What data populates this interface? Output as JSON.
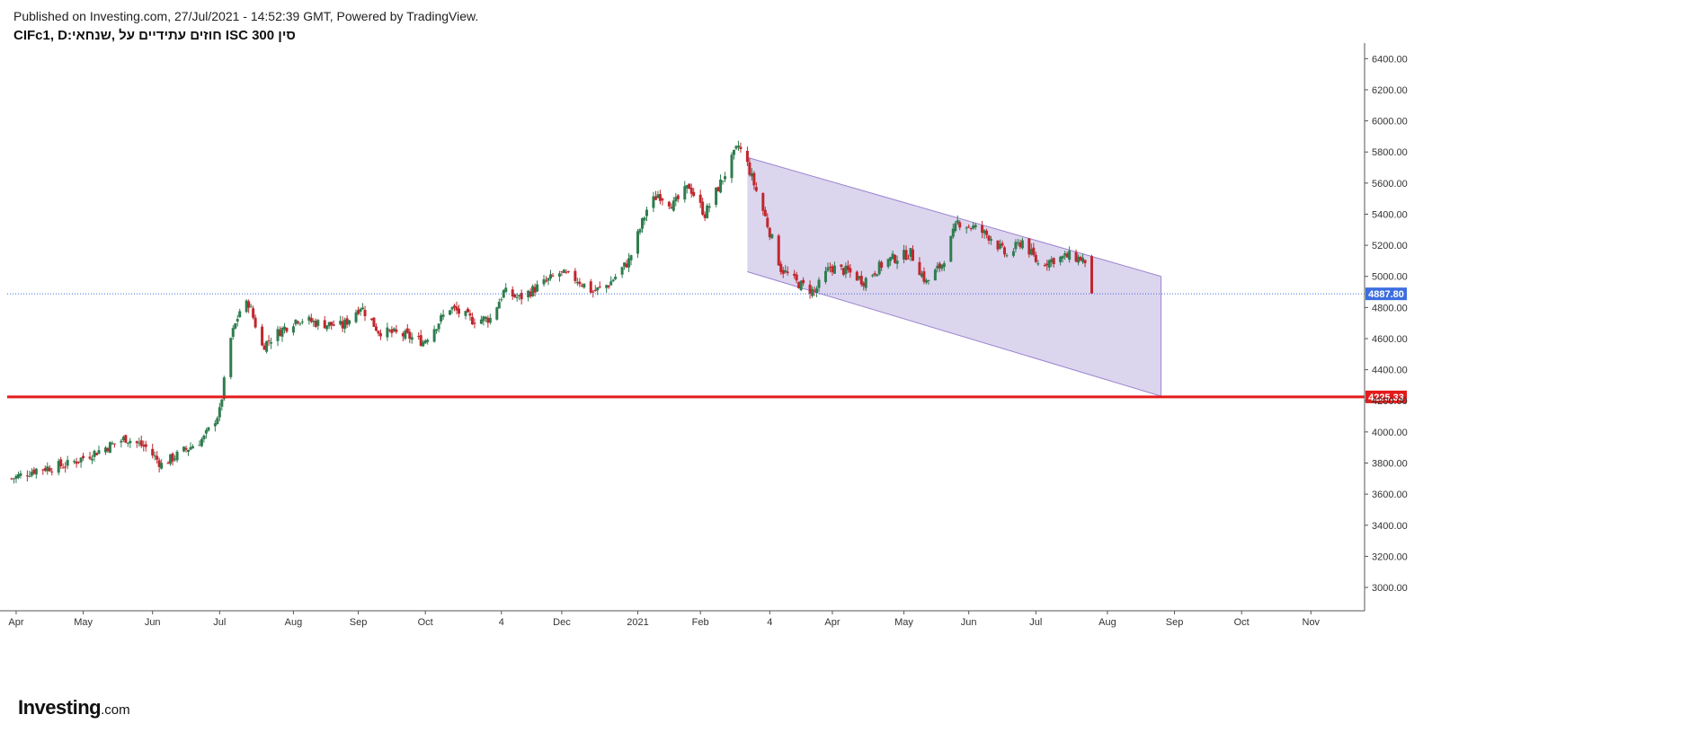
{
  "header": {
    "published": "Published on Investing.com, 27/Jul/2021 - 14:52:39 GMT, Powered by TradingView.",
    "symbol_title": "סין 300 ISC חוזים עתידיים על ,שנחאי:CIFc1, D"
  },
  "logo": {
    "brand": "Investing",
    "suffix": ".com"
  },
  "colors": {
    "up": "#2e7d4f",
    "down": "#c0272d",
    "channel_fill": "#d8d0ec",
    "channel_line": "#9b83cf",
    "support": "#e31b1b",
    "current": "#3c6ee0"
  },
  "chart_data": {
    "type": "candlestick",
    "y_range": [
      2850,
      6500
    ],
    "y_ticks": [
      3000,
      3200,
      3400,
      3600,
      3800,
      4000,
      4200,
      4400,
      4600,
      4800,
      5000,
      5200,
      5400,
      5600,
      5800,
      6000,
      6200,
      6400
    ],
    "y_tick_labels": [
      "3000.00",
      "3200.00",
      "3400.00",
      "3600.00",
      "3800.00",
      "4000.00",
      "4200.00",
      "4400.00",
      "4600.00",
      "4800.00",
      "5000.00",
      "5200.00",
      "5400.00",
      "5600.00",
      "5800.00",
      "6000.00",
      "6200.00",
      "6400.00"
    ],
    "x_range": [
      "2020-03-28",
      "2021-11-25"
    ],
    "x_ticks": [
      {
        "label": "Apr",
        "date": "2020-04-01"
      },
      {
        "label": "May",
        "date": "2020-05-01"
      },
      {
        "label": "Jun",
        "date": "2020-06-01"
      },
      {
        "label": "Jul",
        "date": "2020-07-01"
      },
      {
        "label": "Aug",
        "date": "2020-08-03"
      },
      {
        "label": "Sep",
        "date": "2020-09-01"
      },
      {
        "label": "Oct",
        "date": "2020-10-01"
      },
      {
        "label": "4",
        "date": "2020-11-04"
      },
      {
        "label": "Dec",
        "date": "2020-12-01"
      },
      {
        "label": "2021",
        "date": "2021-01-04"
      },
      {
        "label": "Feb",
        "date": "2021-02-01"
      },
      {
        "label": "4",
        "date": "2021-03-04"
      },
      {
        "label": "Apr",
        "date": "2021-04-01"
      },
      {
        "label": "May",
        "date": "2021-05-03"
      },
      {
        "label": "Jun",
        "date": "2021-06-01"
      },
      {
        "label": "Jul",
        "date": "2021-07-01"
      },
      {
        "label": "Aug",
        "date": "2021-08-02"
      },
      {
        "label": "Sep",
        "date": "2021-09-01"
      },
      {
        "label": "Oct",
        "date": "2021-10-01"
      },
      {
        "label": "Nov",
        "date": "2021-11-01"
      }
    ],
    "close_path": [
      [
        "2020-03-30",
        3700
      ],
      [
        "2020-04-10",
        3760
      ],
      [
        "2020-04-24",
        3790
      ],
      [
        "2020-05-08",
        3880
      ],
      [
        "2020-05-20",
        3960
      ],
      [
        "2020-05-29",
        3900
      ],
      [
        "2020-06-05",
        3790
      ],
      [
        "2020-06-12",
        3850
      ],
      [
        "2020-06-24",
        3960
      ],
      [
        "2020-07-01",
        4130
      ],
      [
        "2020-07-06",
        4600
      ],
      [
        "2020-07-10",
        4780
      ],
      [
        "2020-07-14",
        4830
      ],
      [
        "2020-07-20",
        4550
      ],
      [
        "2020-07-28",
        4650
      ],
      [
        "2020-08-05",
        4730
      ],
      [
        "2020-08-14",
        4700
      ],
      [
        "2020-08-25",
        4680
      ],
      [
        "2020-09-02",
        4810
      ],
      [
        "2020-09-10",
        4650
      ],
      [
        "2020-09-22",
        4620
      ],
      [
        "2020-09-30",
        4580
      ],
      [
        "2020-10-12",
        4800
      ],
      [
        "2020-10-22",
        4720
      ],
      [
        "2020-10-30",
        4730
      ],
      [
        "2020-11-05",
        4900
      ],
      [
        "2020-11-12",
        4860
      ],
      [
        "2020-11-20",
        4930
      ],
      [
        "2020-11-30",
        5020
      ],
      [
        "2020-12-08",
        4980
      ],
      [
        "2020-12-15",
        4900
      ],
      [
        "2020-12-22",
        4950
      ],
      [
        "2020-12-31",
        5100
      ],
      [
        "2021-01-08",
        5430
      ],
      [
        "2021-01-13",
        5530
      ],
      [
        "2021-01-20",
        5460
      ],
      [
        "2021-01-27",
        5580
      ],
      [
        "2021-02-03",
        5400
      ],
      [
        "2021-02-10",
        5600
      ],
      [
        "2021-02-18",
        5840
      ],
      [
        "2021-02-22",
        5720
      ],
      [
        "2021-03-02",
        5380
      ],
      [
        "2021-03-09",
        5050
      ],
      [
        "2021-03-16",
        4960
      ],
      [
        "2021-03-24",
        4900
      ],
      [
        "2021-03-31",
        5060
      ],
      [
        "2021-04-08",
        5030
      ],
      [
        "2021-04-15",
        4970
      ],
      [
        "2021-04-25",
        5100
      ],
      [
        "2021-05-06",
        5150
      ],
      [
        "2021-05-13",
        4960
      ],
      [
        "2021-05-20",
        5080
      ],
      [
        "2021-05-27",
        5350
      ],
      [
        "2021-06-04",
        5310
      ],
      [
        "2021-06-11",
        5250
      ],
      [
        "2021-06-18",
        5130
      ],
      [
        "2021-06-25",
        5230
      ],
      [
        "2021-07-02",
        5080
      ],
      [
        "2021-07-09",
        5110
      ],
      [
        "2021-07-16",
        5130
      ],
      [
        "2021-07-22",
        5110
      ],
      [
        "2021-07-26",
        4890
      ]
    ],
    "channel": {
      "upper": [
        [
          "2021-02-22",
          5765
        ],
        [
          "2021-08-26",
          5000
        ]
      ],
      "lower": [
        [
          "2021-02-22",
          5030
        ],
        [
          "2021-08-26",
          4230
        ]
      ]
    },
    "lines": [
      {
        "name": "current",
        "value": 4887.8,
        "label": "4887.80",
        "style": "dotted"
      },
      {
        "name": "support",
        "value": 4225.33,
        "label": "4225.33",
        "style": "solid"
      }
    ]
  }
}
